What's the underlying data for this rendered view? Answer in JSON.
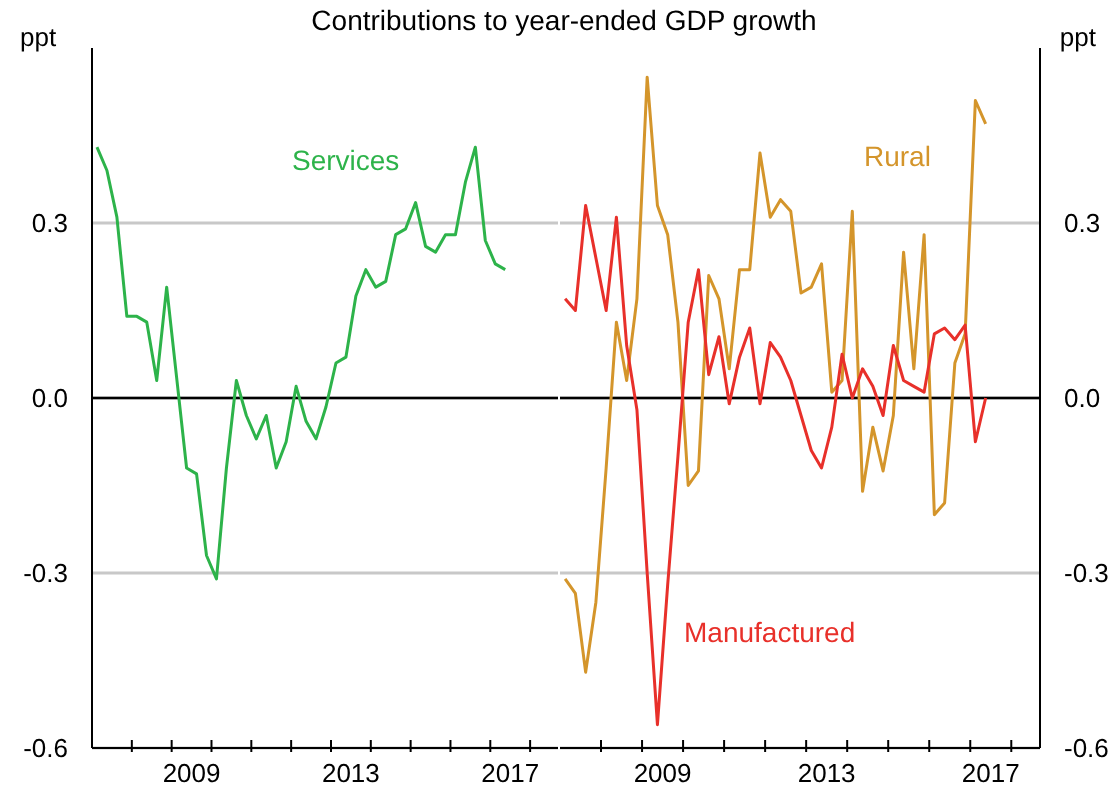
{
  "chart_data": [
    {
      "type": "line",
      "title": "Contributions to year-ended GDP growth",
      "ylabel": "ppt",
      "marker": "none",
      "grid": "y",
      "xlim": [
        2007,
        2018.7
      ],
      "ylim": [
        -0.6,
        0.6
      ],
      "yticks": [
        -0.6,
        -0.3,
        {
          "value": 0,
          "label": "0.0"
        },
        0.3
      ],
      "xticks": [
        {
          "value": 2008,
          "label": null
        },
        {
          "value": 2009,
          "label": null
        },
        {
          "value": 2009.5,
          "label": "2009"
        },
        {
          "value": 2010,
          "label": null
        },
        {
          "value": 2011,
          "label": null
        },
        {
          "value": 2012,
          "label": null
        },
        {
          "value": 2013,
          "label": null
        },
        {
          "value": 2013.5,
          "label": "2013"
        },
        {
          "value": 2014,
          "label": null
        },
        {
          "value": 2015,
          "label": null
        },
        {
          "value": 2016,
          "label": null
        },
        {
          "value": 2017,
          "label": null
        },
        {
          "value": 2017.5,
          "label": "2017"
        },
        {
          "value": 2018,
          "label": null
        }
      ],
      "ref_lines": [
        {
          "axis": "y",
          "value": 0,
          "color": "#000000"
        }
      ],
      "x": [
        2007.125,
        2007.375,
        2007.625,
        2007.875,
        2008.125,
        2008.375,
        2008.625,
        2008.875,
        2009.125,
        2009.375,
        2009.625,
        2009.875,
        2010.125,
        2010.375,
        2010.625,
        2010.875,
        2011.125,
        2011.375,
        2011.625,
        2011.875,
        2012.125,
        2012.375,
        2012.625,
        2012.875,
        2013.125,
        2013.375,
        2013.625,
        2013.875,
        2014.125,
        2014.375,
        2014.625,
        2014.875,
        2015.125,
        2015.375,
        2015.625,
        2015.875,
        2016.125,
        2016.375,
        2016.625,
        2016.875,
        2017.125,
        2017.375
      ],
      "series": [
        {
          "name": "Services",
          "color": "#2db34a",
          "values": [
            0.43,
            0.39,
            0.31,
            0.14,
            0.14,
            0.13,
            0.03,
            0.19,
            0.035,
            -0.12,
            -0.13,
            -0.27,
            -0.31,
            -0.12,
            0.03,
            -0.03,
            -0.07,
            -0.03,
            -0.12,
            -0.075,
            0.02,
            -0.04,
            -0.07,
            -0.015,
            0.06,
            0.07,
            0.175,
            0.22,
            0.19,
            0.2,
            0.28,
            0.29,
            0.335,
            0.26,
            0.25,
            0.28,
            0.28,
            0.37,
            0.43,
            0.27,
            0.23,
            0.22
          ]
        }
      ]
    },
    {
      "type": "line",
      "ylabel": "ppt",
      "marker": "none",
      "grid": "y",
      "xlim": [
        2007,
        2018.7
      ],
      "ylim": [
        -0.6,
        0.6
      ],
      "yticks": [
        -0.6,
        -0.3,
        {
          "value": 0,
          "label": "0.0"
        },
        0.3
      ],
      "xticks": [
        {
          "value": 2008,
          "label": null
        },
        {
          "value": 2009,
          "label": null
        },
        {
          "value": 2009.5,
          "label": "2009"
        },
        {
          "value": 2010,
          "label": null
        },
        {
          "value": 2011,
          "label": null
        },
        {
          "value": 2012,
          "label": null
        },
        {
          "value": 2013,
          "label": null
        },
        {
          "value": 2013.5,
          "label": "2013"
        },
        {
          "value": 2014,
          "label": null
        },
        {
          "value": 2015,
          "label": null
        },
        {
          "value": 2016,
          "label": null
        },
        {
          "value": 2017,
          "label": null
        },
        {
          "value": 2017.5,
          "label": "2017"
        },
        {
          "value": 2018,
          "label": null
        }
      ],
      "ref_lines": [
        {
          "axis": "y",
          "value": 0,
          "color": "#000000"
        }
      ],
      "x": [
        2007.125,
        2007.375,
        2007.625,
        2007.875,
        2008.125,
        2008.375,
        2008.625,
        2008.875,
        2009.125,
        2009.375,
        2009.625,
        2009.875,
        2010.125,
        2010.375,
        2010.625,
        2010.875,
        2011.125,
        2011.375,
        2011.625,
        2011.875,
        2012.125,
        2012.375,
        2012.625,
        2012.875,
        2013.125,
        2013.375,
        2013.625,
        2013.875,
        2014.125,
        2014.375,
        2014.625,
        2014.875,
        2015.125,
        2015.375,
        2015.625,
        2015.875,
        2016.125,
        2016.375,
        2016.625,
        2016.875,
        2017.125,
        2017.375
      ],
      "series": [
        {
          "name": "Rural",
          "color": "#d4952b",
          "values": [
            -0.31,
            -0.335,
            -0.47,
            -0.35,
            -0.12,
            0.13,
            0.03,
            0.17,
            0.55,
            0.33,
            0.28,
            0.13,
            -0.15,
            -0.125,
            0.21,
            0.17,
            0.05,
            0.22,
            0.22,
            0.42,
            0.31,
            0.34,
            0.32,
            0.18,
            0.19,
            0.23,
            0.01,
            0.03,
            0.32,
            -0.16,
            -0.05,
            -0.125,
            -0.03,
            0.25,
            0.05,
            0.28,
            -0.2,
            -0.18,
            0.06,
            0.11,
            0.51,
            0.47
          ]
        },
        {
          "name": "Manufactured",
          "color": "#e8302a",
          "values": [
            0.17,
            0.15,
            0.33,
            0.24,
            0.15,
            0.31,
            0.09,
            -0.02,
            -0.3,
            -0.56,
            -0.32,
            -0.1,
            0.13,
            0.22,
            0.04,
            0.105,
            -0.01,
            0.07,
            0.12,
            -0.01,
            0.095,
            0.07,
            0.03,
            -0.03,
            -0.09,
            -0.12,
            -0.05,
            0.075,
            0.0,
            0.05,
            0.02,
            -0.03,
            0.09,
            0.03,
            0.02,
            0.01,
            0.11,
            0.12,
            0.1,
            0.125,
            -0.075,
            0.0
          ]
        }
      ]
    }
  ]
}
